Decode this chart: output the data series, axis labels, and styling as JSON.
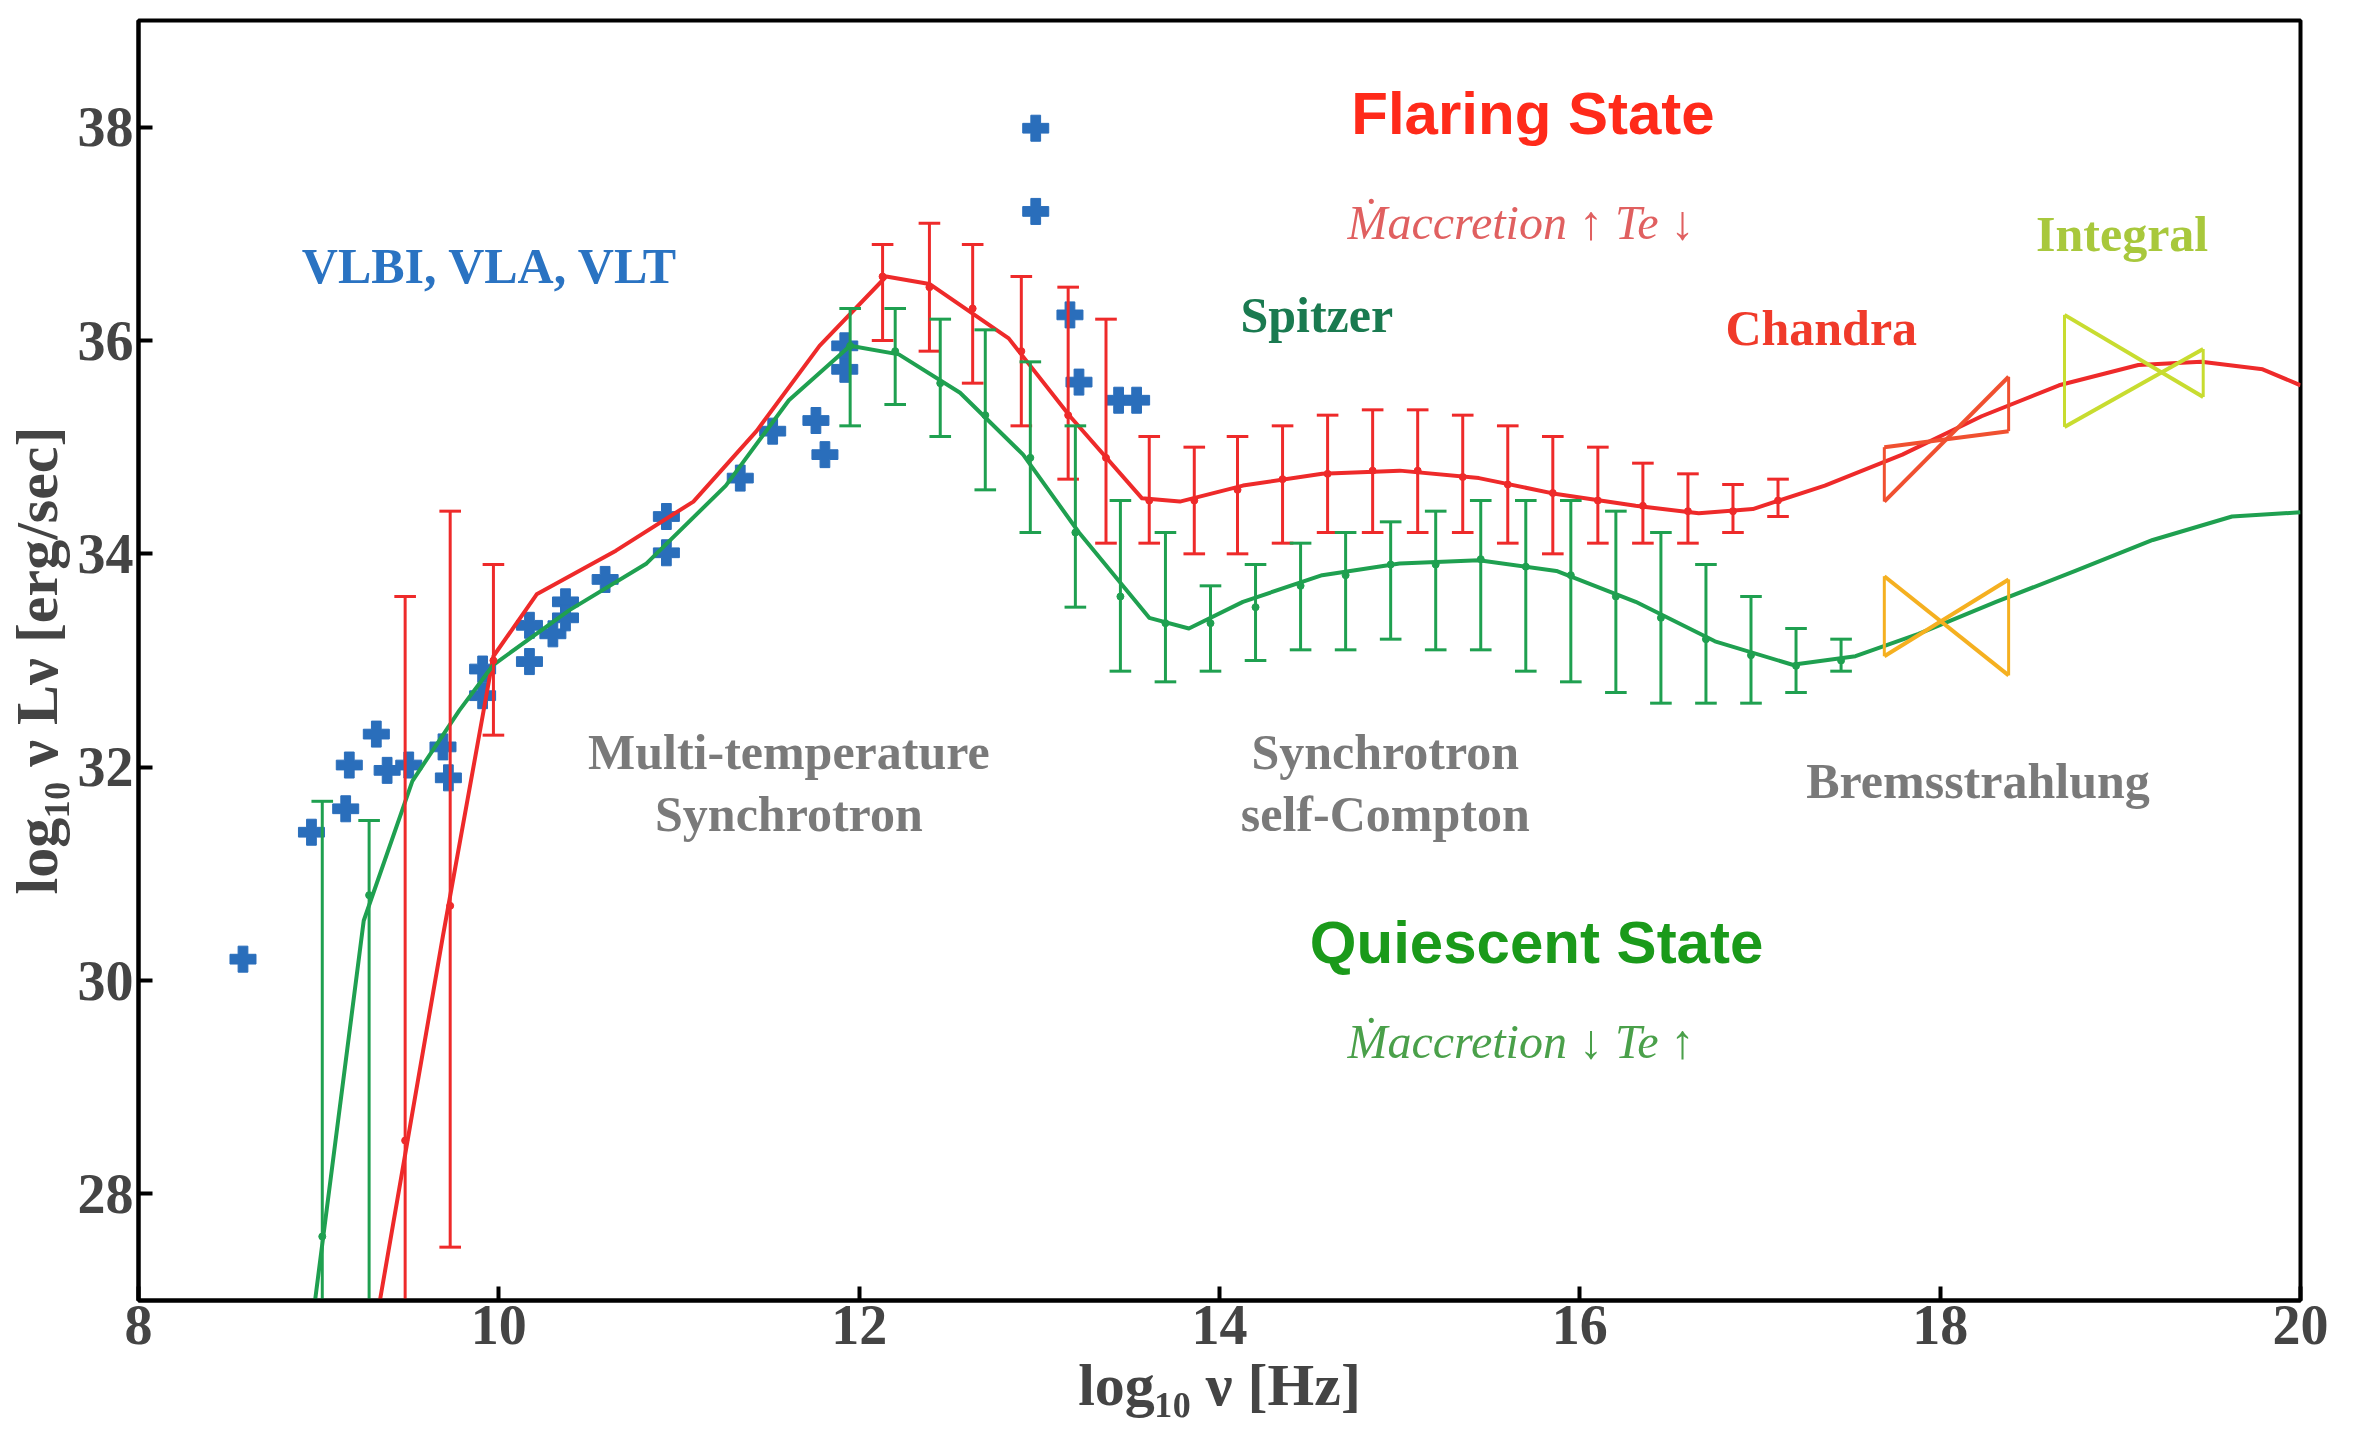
{
  "chart_data": {
    "type": "line",
    "xlabel": "log₁₀ ν [Hz]",
    "ylabel": "log₁₀ ν Lν [erg/sec]",
    "xlim": [
      8,
      20
    ],
    "ylim": [
      27,
      39
    ],
    "xticks": [
      8,
      10,
      12,
      14,
      16,
      18,
      20
    ],
    "yticks": [
      28,
      30,
      32,
      34,
      36,
      38
    ],
    "grid": false,
    "series": [
      {
        "color": "#ee2a2a",
        "marker": "none",
        "x": [
          9.34,
          9.69,
          9.97,
          10.21,
          10.65,
          11.08,
          11.43,
          11.78,
          12.15,
          12.39,
          12.83,
          13.17,
          13.57,
          13.78,
          14.13,
          14.57,
          15.0,
          15.44,
          15.87,
          16.31,
          16.66,
          16.96,
          17.36,
          17.79,
          18.23,
          18.66,
          19.1,
          19.45,
          19.79,
          20.0
        ],
        "values": [
          27.0,
          30.42,
          33.04,
          33.62,
          34.03,
          34.49,
          35.15,
          35.95,
          36.6,
          36.53,
          36.02,
          35.29,
          34.52,
          34.49,
          34.64,
          34.75,
          34.78,
          34.71,
          34.56,
          34.45,
          34.38,
          34.42,
          34.64,
          34.93,
          35.29,
          35.58,
          35.77,
          35.8,
          35.73,
          35.58
        ]
      },
      {
        "color": "#1fa050",
        "marker": "none",
        "x": [
          8.98,
          9.25,
          9.52,
          9.78,
          9.97,
          10.39,
          10.82,
          11.26,
          11.61,
          11.95,
          12.22,
          12.56,
          12.91,
          13.22,
          13.61,
          13.83,
          14.13,
          14.57,
          15.0,
          15.44,
          15.87,
          16.31,
          16.75,
          17.18,
          17.53,
          17.88,
          18.31,
          18.75,
          19.18,
          19.62,
          20.0
        ],
        "values": [
          27.0,
          30.56,
          31.87,
          32.53,
          32.96,
          33.47,
          33.91,
          34.64,
          35.44,
          35.95,
          35.87,
          35.51,
          34.93,
          34.2,
          33.4,
          33.3,
          33.55,
          33.8,
          33.91,
          33.94,
          33.84,
          33.55,
          33.18,
          32.96,
          33.04,
          33.25,
          33.55,
          33.84,
          34.13,
          34.35,
          34.39
        ]
      },
      {
        "type": "scatter",
        "color": "#ee2a2a",
        "marker": "circle",
        "x": [
          9.48,
          9.73,
          9.97,
          12.13,
          12.39,
          12.63,
          12.9,
          13.16,
          13.37,
          13.61,
          13.86,
          14.1,
          14.35,
          14.6,
          14.85,
          15.1,
          15.35,
          15.6,
          15.85,
          16.1,
          16.35,
          16.6,
          16.85,
          17.1
        ],
        "values": [
          28.5,
          30.7,
          33.0,
          36.6,
          36.5,
          36.3,
          35.9,
          35.3,
          34.9,
          34.5,
          34.5,
          34.6,
          34.7,
          34.75,
          34.78,
          34.78,
          34.72,
          34.65,
          34.57,
          34.5,
          34.45,
          34.4,
          34.4,
          34.5
        ],
        "errors": [
          [
            27.0,
            33.6
          ],
          [
            27.5,
            34.4
          ],
          [
            32.3,
            33.9
          ],
          [
            36.0,
            36.9
          ],
          [
            35.9,
            37.1
          ],
          [
            35.6,
            36.9
          ],
          [
            35.2,
            36.6
          ],
          [
            34.7,
            36.5
          ],
          [
            34.1,
            36.2
          ],
          [
            34.1,
            35.1
          ],
          [
            34.0,
            35.0
          ],
          [
            34.0,
            35.1
          ],
          [
            34.1,
            35.2
          ],
          [
            34.2,
            35.3
          ],
          [
            34.2,
            35.35
          ],
          [
            34.2,
            35.35
          ],
          [
            34.2,
            35.3
          ],
          [
            34.1,
            35.2
          ],
          [
            34.0,
            35.1
          ],
          [
            34.1,
            35.0
          ],
          [
            34.1,
            34.85
          ],
          [
            34.1,
            34.75
          ],
          [
            34.2,
            34.65
          ],
          [
            34.35,
            34.7
          ]
        ]
      },
      {
        "type": "scatter",
        "color": "#1fa050",
        "marker": "circle",
        "x": [
          9.02,
          9.28,
          11.95,
          12.2,
          12.45,
          12.7,
          12.95,
          13.2,
          13.45,
          13.7,
          13.95,
          14.2,
          14.45,
          14.7,
          14.95,
          15.2,
          15.45,
          15.7,
          15.95,
          16.2,
          16.45,
          16.7,
          16.95,
          17.2,
          17.45
        ],
        "values": [
          27.6,
          30.8,
          35.95,
          35.9,
          35.6,
          35.3,
          34.9,
          34.2,
          33.6,
          33.35,
          33.35,
          33.5,
          33.7,
          33.8,
          33.9,
          33.9,
          33.95,
          33.88,
          33.8,
          33.6,
          33.4,
          33.2,
          33.05,
          32.95,
          33.0
        ],
        "errors": [
          [
            27.0,
            31.68
          ],
          [
            27.0,
            31.5
          ],
          [
            35.2,
            36.3
          ],
          [
            35.4,
            36.3
          ],
          [
            35.1,
            36.2
          ],
          [
            34.6,
            36.1
          ],
          [
            34.2,
            35.8
          ],
          [
            33.5,
            35.2
          ],
          [
            32.9,
            34.5
          ],
          [
            32.8,
            34.2
          ],
          [
            32.9,
            33.7
          ],
          [
            33.0,
            33.9
          ],
          [
            33.1,
            34.1
          ],
          [
            33.1,
            34.2
          ],
          [
            33.2,
            34.3
          ],
          [
            33.1,
            34.4
          ],
          [
            33.1,
            34.5
          ],
          [
            32.9,
            34.5
          ],
          [
            32.8,
            34.5
          ],
          [
            32.7,
            34.4
          ],
          [
            32.6,
            34.2
          ],
          [
            32.6,
            33.9
          ],
          [
            32.6,
            33.6
          ],
          [
            32.7,
            33.3
          ],
          [
            32.9,
            33.2
          ]
        ]
      },
      {
        "type": "scatter",
        "color": "#2a6ebb",
        "marker": "cross",
        "x": [
          8.58,
          8.96,
          9.17,
          9.15,
          9.32,
          9.38,
          9.5,
          9.69,
          9.72,
          9.91,
          9.91,
          10.17,
          10.17,
          10.3,
          10.37,
          10.37,
          10.59,
          10.93,
          10.93,
          11.34,
          11.52,
          11.76,
          11.81,
          11.92,
          11.92,
          12.98,
          12.98,
          13.17,
          13.22,
          13.44,
          13.54
        ],
        "values": [
          30.2,
          31.39,
          32.02,
          31.61,
          32.31,
          31.97,
          32.02,
          32.19,
          31.9,
          32.67,
          32.92,
          32.99,
          33.33,
          33.25,
          33.55,
          33.4,
          33.76,
          34.01,
          34.35,
          34.71,
          35.15,
          35.25,
          34.93,
          35.73,
          35.95,
          37.99,
          37.21,
          36.24,
          35.61,
          35.44,
          35.44
        ]
      },
      {
        "color": "#f05030",
        "marker": "none",
        "x": [
          17.69,
          18.38
        ],
        "values": [
          35.0,
          35.15
        ],
        "errors": [
          [
            34.49,
            35.0
          ],
          [
            35.15,
            35.66
          ]
        ]
      },
      {
        "color": "#f05030",
        "marker": "none",
        "x": [
          17.69,
          18.38
        ],
        "values": [
          34.49,
          35.66
        ]
      },
      {
        "color": "#f5b020",
        "marker": "none",
        "x": [
          17.69,
          18.38
        ],
        "values": [
          33.79,
          32.86
        ],
        "errors": [
          [
            33.04,
            33.79
          ],
          [
            32.86,
            33.76
          ]
        ]
      },
      {
        "color": "#f5b020",
        "marker": "none",
        "x": [
          17.69,
          18.38
        ],
        "values": [
          33.04,
          33.76
        ]
      },
      {
        "color": "#c8dc30",
        "marker": "none",
        "x": [
          18.69,
          19.46
        ],
        "values": [
          36.24,
          35.47
        ],
        "errors": [
          [
            35.19,
            36.24
          ],
          [
            35.47,
            35.92
          ]
        ]
      },
      {
        "color": "#c8dc30",
        "marker": "none",
        "x": [
          18.69,
          19.46
        ],
        "values": [
          35.19,
          35.92
        ]
      }
    ],
    "annotations": [
      "VLBI, VLA, VLT",
      "Flaring State",
      "Ṁaccretion ↑   Te ↓",
      "Integral",
      "Spitzer",
      "Chandra",
      "Multi-temperature\nSynchrotron",
      "Synchrotron\nself-Compton",
      "Bremsstrahlung",
      "Quiescent State",
      "Ṁaccretion ↓   Te ↑"
    ]
  }
}
